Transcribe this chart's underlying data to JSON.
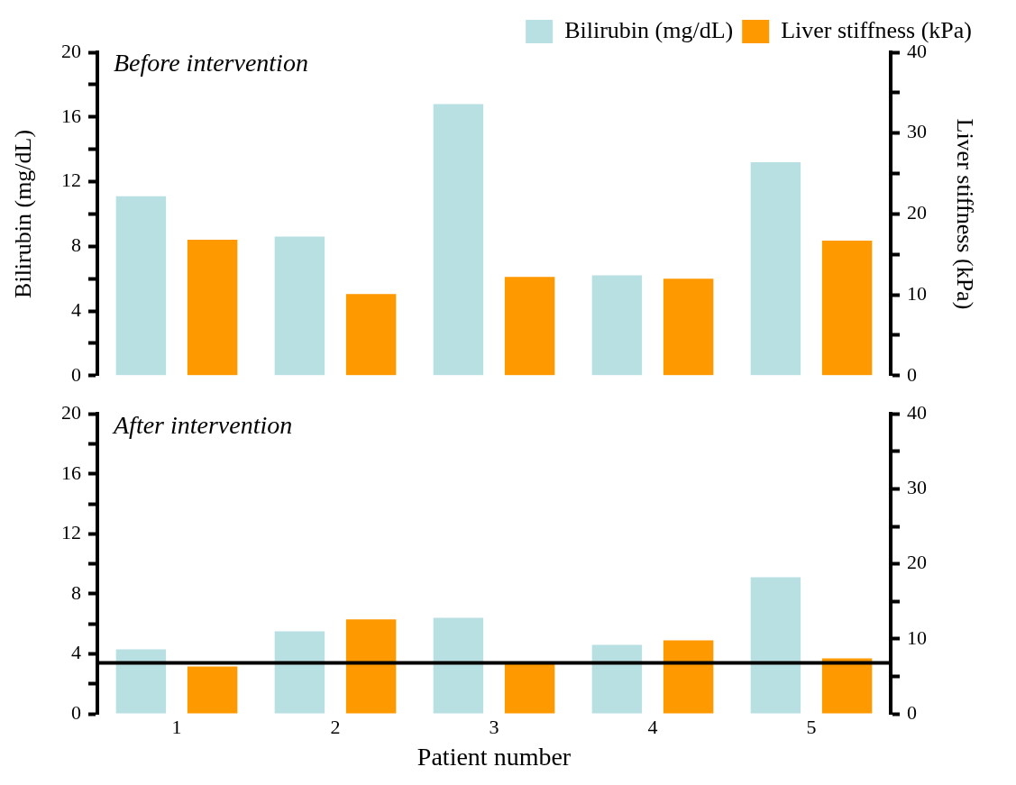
{
  "chart_data": [
    {
      "type": "bar",
      "title": "Before intervention",
      "ylabel": "Bilirubin (mg/dL)",
      "y2label": "Liver stiffness (kPa)",
      "categories": [
        "1",
        "2",
        "3",
        "4",
        "5"
      ],
      "series": [
        {
          "name": "Bilirubin (mg/dL)",
          "color": "#b8e0e2",
          "values": [
            11.1,
            8.6,
            16.8,
            6.2,
            13.2
          ]
        },
        {
          "name": "Liver stiffness (kPa)",
          "color": "#ff9900",
          "axis": "y2",
          "values": [
            16.8,
            10.1,
            12.2,
            12.0,
            16.7
          ]
        }
      ],
      "ylim": [
        0,
        20
      ],
      "yticks": [
        0,
        {
          "value": 2,
          "label": null
        },
        4,
        {
          "value": 6,
          "label": null
        },
        8,
        {
          "value": 10,
          "label": null
        },
        12,
        {
          "value": 14,
          "label": null
        },
        16,
        {
          "value": 18,
          "label": null
        },
        20
      ],
      "y2lim": [
        0,
        40
      ],
      "y2ticks": [
        0,
        {
          "value": 5,
          "label": null
        },
        10,
        {
          "value": 15,
          "label": null
        },
        20,
        {
          "value": 25,
          "label": null
        },
        30,
        {
          "value": 35,
          "label": null
        },
        40
      ],
      "tick_labels": "y",
      "legend": "top right",
      "grid": false
    },
    {
      "type": "bar",
      "title": "After intervention",
      "xlabel": "Patient number",
      "categories": [
        "1",
        "2",
        "3",
        "4",
        "5"
      ],
      "series": [
        {
          "color": "#b8e0e2",
          "values": [
            4.3,
            5.5,
            6.4,
            4.6,
            9.1
          ]
        },
        {
          "color": "#ff9900",
          "axis": "y2",
          "values": [
            6.3,
            12.6,
            6.8,
            9.8,
            7.4
          ]
        }
      ],
      "ylim": [
        0,
        20
      ],
      "yticks": [
        0,
        {
          "value": 2,
          "label": null
        },
        4,
        {
          "value": 6,
          "label": null
        },
        8,
        {
          "value": 10,
          "label": null
        },
        12,
        {
          "value": 14,
          "label": null
        },
        16,
        {
          "value": 18,
          "label": null
        },
        20
      ],
      "y2lim": [
        0,
        40
      ],
      "y2ticks": [
        0,
        {
          "value": 5,
          "label": null
        },
        10,
        {
          "value": 15,
          "label": null
        },
        20,
        {
          "value": 25,
          "label": null
        },
        30,
        {
          "value": 35,
          "label": null
        },
        40
      ],
      "ref_lines": [
        {
          "axis": "y",
          "value": 3.4,
          "color": "#000000"
        }
      ],
      "legend": false,
      "grid": false
    }
  ]
}
